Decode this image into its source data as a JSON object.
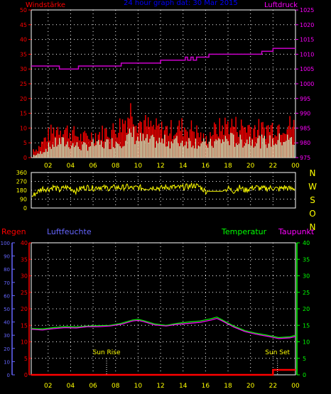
{
  "header": {
    "left_label": "Windstärke",
    "title": "24 hour graph dat:  30 Mar 2015",
    "right_label": "Luftdruck"
  },
  "colors": {
    "background": "#000000",
    "grid": "#ffffff",
    "axis_frame": "#ffffff",
    "wind_gust": "#ff0000",
    "wind_avg": "#ccffcc",
    "pressure": "#cc00cc",
    "direction": "#ffff00",
    "rain": "#ff0000",
    "humidity": "#6666ff",
    "temperature": "#00ff00",
    "dewpoint": "#ff00ff",
    "sun_marker": "#ffffff",
    "x_tick_label": "#ffff00",
    "header_title": "#0000ff",
    "label_windstarke": "#ff0000",
    "label_luftdruck": "#ff00ff",
    "label_regen": "#ff0000",
    "label_luftfeuchte": "#6666ff",
    "label_temperatur": "#00ff00",
    "label_taupunkt": "#ff00ff",
    "compass_letters": "#ffff00"
  },
  "x_ticks": [
    "02",
    "04",
    "06",
    "08",
    "10",
    "12",
    "14",
    "16",
    "18",
    "20",
    "22",
    "00"
  ],
  "panel_wind": {
    "left_axis_ticks": [
      "50",
      "45",
      "40",
      "35",
      "30",
      "25",
      "20",
      "15",
      "10",
      "5",
      "0"
    ],
    "right_axis_ticks": [
      "1025",
      "1020",
      "1015",
      "1010",
      "1005",
      "1000",
      "995",
      "990",
      "985",
      "980",
      "975"
    ]
  },
  "panel_direction": {
    "left_axis_ticks": [
      "360",
      "270",
      "180",
      "90",
      "0"
    ],
    "compass_letters": [
      "N",
      "W",
      "S",
      "O",
      "N"
    ]
  },
  "panel_env": {
    "labels": {
      "regen": "Regen",
      "luftfeuchte": "Luftfeuchte",
      "temperatur": "Temperatur",
      "taupunkt": "Taupunkt"
    },
    "humidity_ticks": [
      "100",
      "90",
      "80",
      "70",
      "60",
      "50",
      "40",
      "30",
      "20",
      "10",
      "0"
    ],
    "rain_ticks": [
      "40",
      "35",
      "30",
      "25",
      "20",
      "15",
      "10",
      "5",
      "0"
    ],
    "temp_ticks": [
      "40",
      "35",
      "30",
      "25",
      "20",
      "15",
      "10",
      "5",
      "0"
    ],
    "sun_rise_label": "Sun Rise",
    "sun_set_label": "Sun Set"
  },
  "chart_data": [
    {
      "type": "line",
      "title": "Windstärke / Luftdruck",
      "x_unit": "hour",
      "xlim": [
        0.5,
        24
      ],
      "ylim_left": [
        0,
        50
      ],
      "ylim_right": [
        975,
        1025
      ],
      "grid": true,
      "series": [
        {
          "name": "Windstärke",
          "axis": "left",
          "style": "bars",
          "x": [
            1.0,
            2.0,
            3.0,
            4.0,
            5.0,
            6.0,
            7.0,
            8.0,
            9.0,
            9.5,
            10.0,
            11.0,
            12.0,
            13.0,
            14.0,
            15.0,
            16.0,
            16.5,
            17.0,
            18.0,
            19.0,
            20.0,
            21.0,
            22.0,
            23.0,
            24.0
          ],
          "values": [
            3,
            8,
            11,
            9,
            7,
            8,
            9,
            10,
            14,
            18,
            13,
            11,
            10,
            10,
            11,
            10,
            6,
            9,
            10,
            12,
            11,
            11,
            10,
            11,
            12,
            11
          ]
        },
        {
          "name": "Windstärke Mittel",
          "axis": "left",
          "style": "bars",
          "x": [
            1.0,
            2.0,
            3.0,
            4.0,
            5.0,
            6.0,
            7.0,
            8.0,
            9.0,
            9.5,
            10.0,
            11.0,
            12.0,
            13.0,
            14.0,
            15.0,
            16.0,
            16.5,
            17.0,
            18.0,
            19.0,
            20.0,
            21.0,
            22.0,
            23.0,
            24.0
          ],
          "values": [
            1,
            4,
            6,
            5,
            4,
            5,
            5,
            6,
            7,
            9,
            7,
            6,
            6,
            6,
            6,
            6,
            5,
            5,
            6,
            7,
            6,
            7,
            6,
            6,
            7,
            6
          ]
        },
        {
          "name": "Luftdruck",
          "axis": "right",
          "style": "step",
          "x": [
            0.5,
            2.5,
            3.0,
            4.7,
            6.0,
            8.5,
            10.0,
            12.0,
            14.0,
            14.2,
            14.4,
            14.7,
            14.9,
            15.2,
            15.5,
            16.3,
            19.0,
            21.0,
            22.0,
            24.0
          ],
          "values": [
            1006,
            1006,
            1005,
            1006,
            1006,
            1007,
            1007,
            1008,
            1008,
            1009,
            1008,
            1009,
            1008,
            1009,
            1009,
            1010,
            1010,
            1011,
            1012,
            1012
          ]
        }
      ]
    },
    {
      "type": "line",
      "title": "Windrichtung",
      "x_unit": "hour",
      "xlim": [
        0.5,
        24
      ],
      "ylim": [
        0,
        360
      ],
      "grid": true,
      "series": [
        {
          "name": "Windrichtung",
          "x": [
            0.5,
            1.0,
            1.5,
            2.0,
            2.5,
            3.0,
            3.5,
            4.0,
            4.5,
            5.0,
            5.5,
            6.0,
            6.5,
            7.0,
            7.5,
            8.0,
            8.5,
            9.0,
            9.5,
            10.0,
            10.5,
            11.0,
            11.5,
            12.0,
            12.5,
            13.0,
            13.5,
            14.0,
            14.5,
            15.0,
            15.5,
            16.0,
            16.5,
            17.0,
            17.5,
            18.0,
            18.5,
            19.0,
            19.5,
            20.0,
            20.5,
            21.0,
            21.5,
            22.0,
            22.5,
            23.0,
            23.5,
            24.0
          ],
          "values": [
            110,
            160,
            200,
            190,
            215,
            180,
            210,
            200,
            170,
            205,
            210,
            200,
            215,
            205,
            200,
            210,
            205,
            215,
            200,
            210,
            200,
            205,
            210,
            200,
            210,
            215,
            205,
            210,
            220,
            230,
            215,
            170,
            170,
            170,
            170,
            200,
            170,
            210,
            180,
            200,
            210,
            195,
            200,
            205,
            190,
            210,
            195,
            200
          ]
        }
      ]
    },
    {
      "type": "line",
      "title": "Regen / Luftfeuchte / Temperatur / Taupunkt",
      "x_unit": "hour",
      "xlim": [
        0.5,
        24
      ],
      "ylim_humidity": [
        0,
        100
      ],
      "ylim_rain": [
        0,
        40
      ],
      "ylim_temp": [
        0,
        40
      ],
      "grid": true,
      "series": [
        {
          "name": "Regen",
          "axis": "rain",
          "x": [
            0.5,
            22.0,
            22.0,
            24.0
          ],
          "values": [
            0,
            0,
            1.5,
            1.5
          ]
        },
        {
          "name": "Temperatur",
          "axis": "temp",
          "x": [
            0.5,
            1.5,
            2.5,
            3.5,
            4.5,
            5.5,
            6.5,
            7.5,
            8.5,
            9.5,
            10.0,
            10.5,
            11.5,
            12.5,
            13.5,
            14.5,
            15.5,
            16.5,
            17.0,
            17.5,
            18.5,
            19.5,
            20.5,
            21.5,
            22.5,
            23.5,
            24.0
          ],
          "values": [
            14.0,
            13.9,
            14.3,
            14.6,
            14.5,
            14.8,
            14.9,
            15.0,
            15.6,
            16.6,
            16.8,
            16.4,
            15.4,
            15.0,
            15.6,
            16.0,
            16.3,
            17.0,
            17.5,
            16.6,
            14.8,
            13.4,
            12.6,
            12.0,
            11.3,
            11.5,
            12.0
          ]
        },
        {
          "name": "Taupunkt",
          "axis": "temp",
          "x": [
            0.5,
            1.5,
            2.5,
            3.5,
            4.5,
            5.5,
            6.5,
            7.5,
            8.5,
            9.5,
            10.0,
            10.5,
            11.5,
            12.5,
            13.5,
            14.5,
            15.5,
            16.5,
            17.0,
            17.5,
            18.5,
            19.5,
            20.5,
            21.5,
            22.5,
            23.5,
            24.0
          ],
          "values": [
            13.8,
            13.6,
            14.0,
            14.3,
            14.2,
            14.6,
            14.6,
            14.8,
            15.3,
            16.3,
            16.5,
            16.1,
            15.1,
            14.8,
            15.3,
            15.6,
            15.9,
            16.6,
            17.1,
            16.3,
            14.5,
            13.1,
            12.3,
            11.7,
            11.0,
            11.2,
            11.6
          ]
        }
      ],
      "annotations": [
        {
          "label": "Sun Rise",
          "x": 7.2
        },
        {
          "label": "Sun Set",
          "x": 22.4
        }
      ]
    }
  ]
}
